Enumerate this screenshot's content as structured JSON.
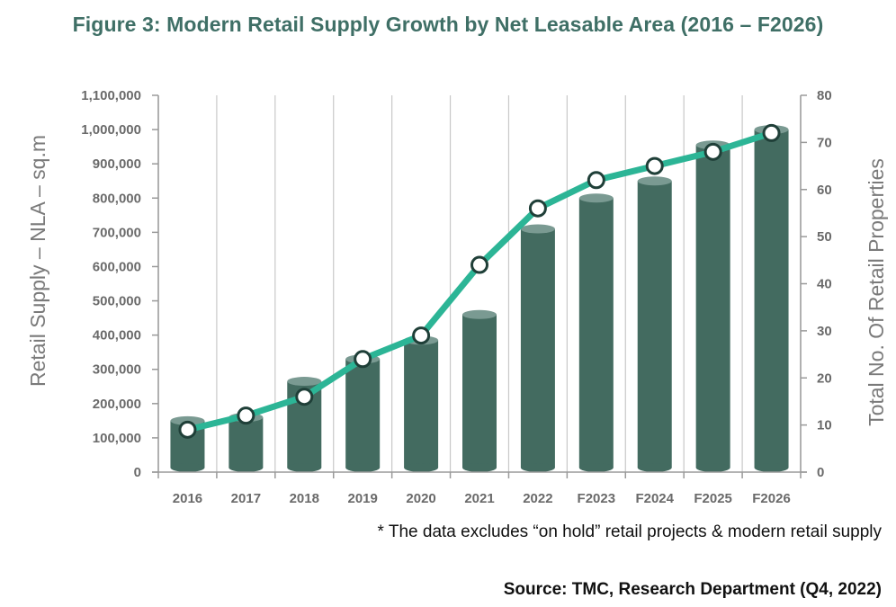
{
  "title": "Figure 3: Modern Retail Supply Growth by Net Leasable Area (2016 – F2026)",
  "note": "* The data excludes “on hold” retail projects & modern retail supply",
  "source": "Source: TMC, Research Department (Q4, 2022)",
  "colors": {
    "bars": "#436b60",
    "bar_top": "#7a9a92",
    "line": "#2cb596",
    "title": "#3f6f66"
  },
  "chart_data": {
    "type": "bar",
    "title": "Figure 3: Modern Retail Supply Growth by Net Leasable Area (2016 – F2026)",
    "categories": [
      "2016",
      "2017",
      "2018",
      "2019",
      "2020",
      "2021",
      "2022",
      "F2023",
      "F2024",
      "F2025",
      "F2026"
    ],
    "series": [
      {
        "type": "bar",
        "axis": "left",
        "values": [
          150000,
          160000,
          265000,
          330000,
          385000,
          460000,
          710000,
          800000,
          850000,
          955000,
          1000000
        ]
      },
      {
        "type": "line",
        "axis": "right",
        "values": [
          9,
          12,
          16,
          24,
          29,
          44,
          56,
          62,
          65,
          68,
          72
        ]
      }
    ],
    "ylabel": "Retail Supply – NLA – sq.m",
    "y2label": "Total No. Of Retail Properties",
    "ylim": [
      0,
      1100000
    ],
    "y2lim": [
      0,
      80
    ],
    "yticks": [
      "0",
      "100,000",
      "200,000",
      "300,000",
      "400,000",
      "500,000",
      "600,000",
      "700,000",
      "800,000",
      "900,000",
      "1,000,000",
      "1,100,000"
    ],
    "y2ticks": [
      "0",
      "10",
      "20",
      "30",
      "40",
      "50",
      "60",
      "70",
      "80"
    ],
    "grid": "vertical"
  }
}
